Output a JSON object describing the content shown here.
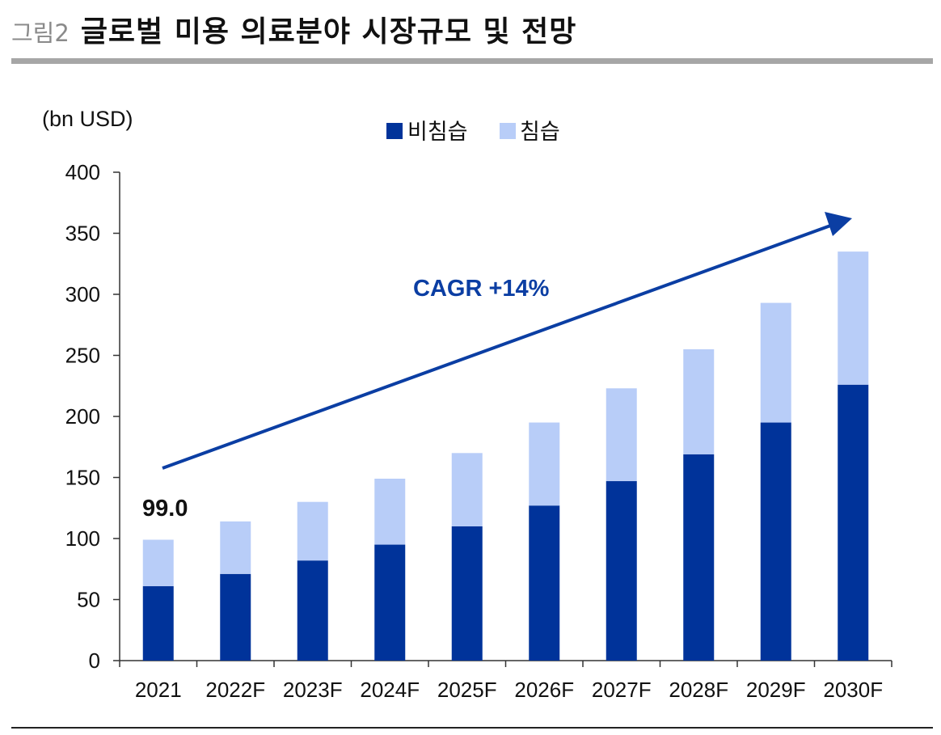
{
  "header": {
    "figure_label": "그림2",
    "title": "글로벌 미용 의료분야 시장규모 및 전망"
  },
  "chart_data": {
    "type": "bar",
    "stacked": true,
    "title": "글로벌 미용 의료분야 시장규모 및 전망",
    "unit_label": "(bn USD)",
    "categories": [
      "2021",
      "2022F",
      "2023F",
      "2024F",
      "2025F",
      "2026F",
      "2027F",
      "2028F",
      "2029F",
      "2030F"
    ],
    "series": [
      {
        "name": "비침습",
        "color": "#00339a",
        "values": [
          61,
          71,
          82,
          95,
          110,
          127,
          147,
          169,
          195,
          226
        ]
      },
      {
        "name": "침습",
        "color": "#b8cdf8",
        "values": [
          38,
          43,
          48,
          54,
          60,
          68,
          76,
          86,
          98,
          109
        ]
      }
    ],
    "ylim": [
      0,
      400
    ],
    "yticks": [
      0,
      50,
      100,
      150,
      200,
      250,
      300,
      350,
      400
    ],
    "legend_position": "top-center",
    "annotations": {
      "first_total_label": "99.0",
      "cagr_label": "CAGR +14%",
      "arrow_color": "#0b3ea3"
    }
  }
}
